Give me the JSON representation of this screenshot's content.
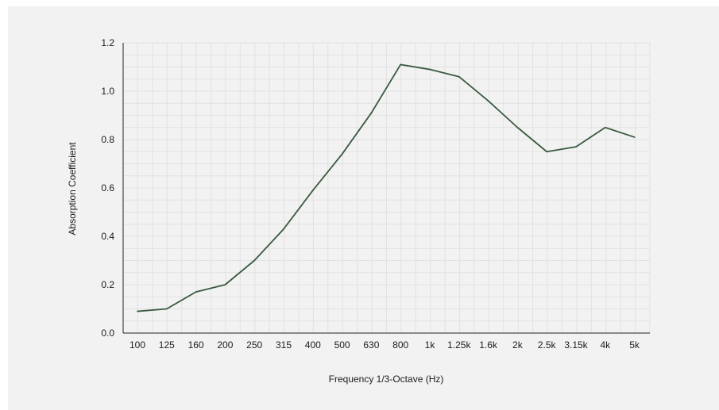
{
  "chart_data": {
    "type": "line",
    "xlabel": "Frequency 1/3-Octave (Hz)",
    "ylabel": "Absorption Coefficient",
    "categories": [
      "100",
      "125",
      "160",
      "200",
      "250",
      "315",
      "400",
      "500",
      "630",
      "800",
      "1k",
      "1.25k",
      "1.6k",
      "2k",
      "2.5k",
      "3.15k",
      "4k",
      "5k"
    ],
    "series": [
      {
        "values": [
          0.09,
          0.1,
          0.17,
          0.2,
          0.3,
          0.43,
          0.59,
          0.74,
          0.91,
          1.11,
          1.09,
          1.06,
          0.96,
          0.85,
          0.75,
          0.77,
          0.85,
          0.81
        ]
      }
    ],
    "ylim": [
      0,
      1.2
    ],
    "yticks": [
      "0.0",
      "0.2",
      "0.4",
      "0.6",
      "0.8",
      "1.0",
      "1.2"
    ],
    "grid": true,
    "line_color": "#3a5a40"
  }
}
